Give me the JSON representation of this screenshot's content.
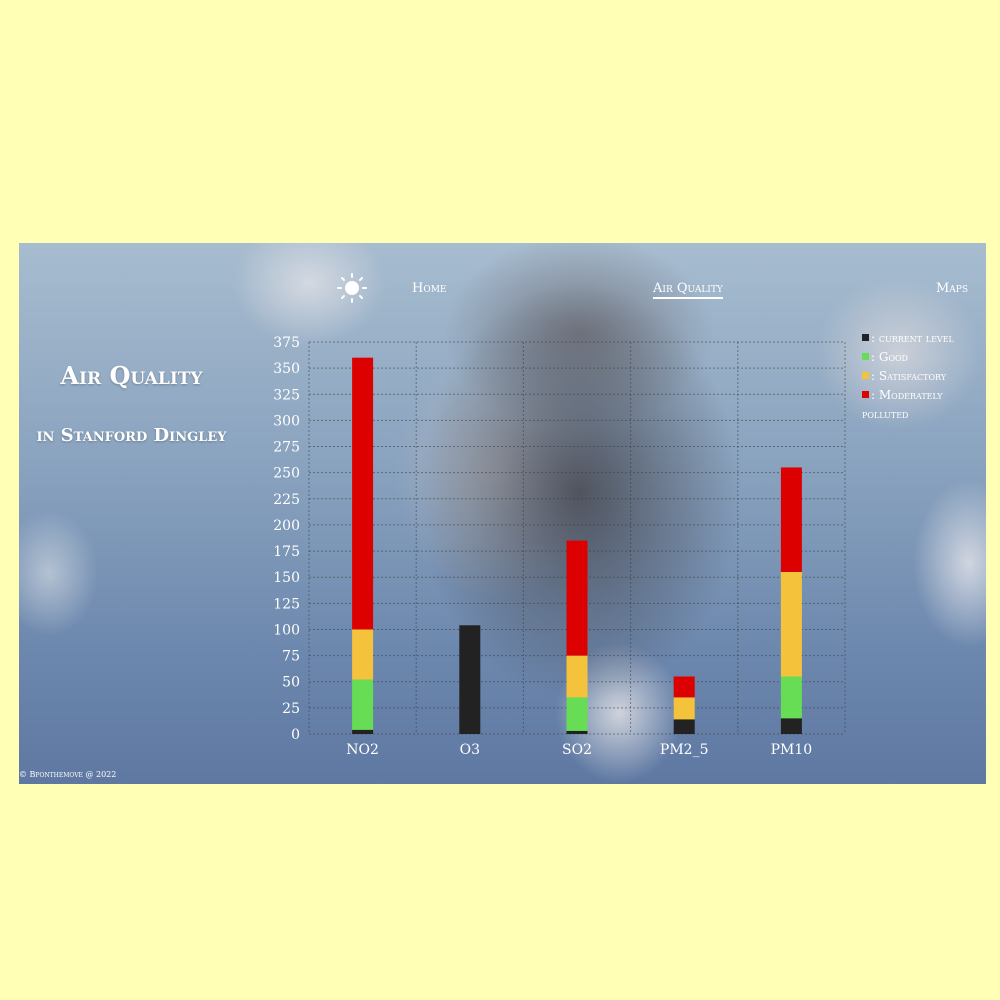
{
  "nav": {
    "logo_icon": "sun-icon",
    "home_label": "Home",
    "air_quality_label": "Air Quality",
    "maps_label": "Maps"
  },
  "hero": {
    "title": "Air Quality",
    "subtitle": "in Stanford Dingley"
  },
  "legend": {
    "items": [
      {
        "label": ": current level",
        "color": "#222222"
      },
      {
        "label": ": Good",
        "color": "#66dd55"
      },
      {
        "label": ": Satisfactory",
        "color": "#f5c33b"
      },
      {
        "label": ": Moderately polluted",
        "color": "#dd0000"
      }
    ]
  },
  "footer": "© Bponthemove @ 2022",
  "chart_data": {
    "type": "bar",
    "stacked": true,
    "categories": [
      "NO2",
      "O3",
      "SO2",
      "PM2_5",
      "PM10"
    ],
    "series": [
      {
        "name": "current level",
        "color": "#222222",
        "values": [
          4,
          104,
          3,
          14,
          15
        ]
      },
      {
        "name": "Good",
        "color": "#66dd55",
        "values": [
          48,
          0,
          32,
          0,
          40
        ]
      },
      {
        "name": "Satisfactory",
        "color": "#f5c33b",
        "values": [
          48,
          0,
          40,
          21,
          100
        ]
      },
      {
        "name": "Moderately polluted",
        "color": "#dd0000",
        "values": [
          260,
          0,
          110,
          20,
          100
        ]
      }
    ],
    "ylim": [
      0,
      375
    ],
    "yticks": [
      0,
      25,
      50,
      75,
      100,
      125,
      150,
      175,
      200,
      225,
      250,
      275,
      300,
      325,
      350,
      375
    ],
    "grid": true,
    "legend_position": "top-right"
  }
}
